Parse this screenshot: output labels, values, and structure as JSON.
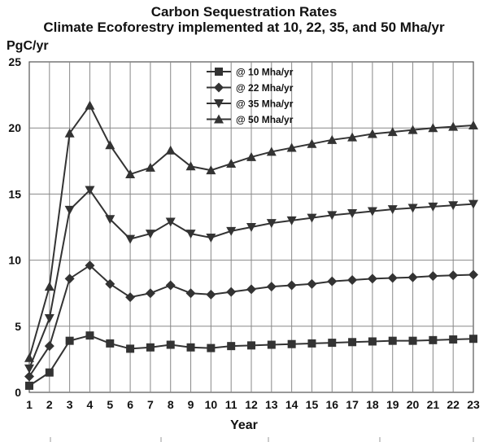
{
  "chart_data": {
    "type": "line",
    "title": "Carbon Sequestration Rates",
    "subtitle": "Climate Ecoforestry implemented at 10, 22, 35, and 50 Mha/yr",
    "ylabel": "PgC/yr",
    "xlabel": "Year",
    "x": [
      1,
      2,
      3,
      4,
      5,
      6,
      7,
      8,
      9,
      10,
      11,
      12,
      13,
      14,
      15,
      16,
      17,
      18,
      19,
      20,
      21,
      22,
      23
    ],
    "xlim": [
      1,
      23
    ],
    "ylim": [
      0,
      25
    ],
    "yticks": [
      0,
      5,
      10,
      15,
      20,
      25
    ],
    "grid": true,
    "legend_position": "top-center",
    "series": [
      {
        "name": "@ 10 Mha/yr",
        "marker": "square",
        "values": [
          0.5,
          1.5,
          3.9,
          4.3,
          3.7,
          3.3,
          3.4,
          3.6,
          3.4,
          3.35,
          3.5,
          3.55,
          3.6,
          3.65,
          3.7,
          3.75,
          3.8,
          3.85,
          3.9,
          3.9,
          3.95,
          4.0,
          4.05
        ]
      },
      {
        "name": "@ 22 Mha/yr",
        "marker": "diamond",
        "values": [
          1.2,
          3.5,
          8.6,
          9.6,
          8.2,
          7.2,
          7.5,
          8.1,
          7.5,
          7.4,
          7.6,
          7.8,
          8.0,
          8.1,
          8.2,
          8.4,
          8.5,
          8.6,
          8.65,
          8.7,
          8.8,
          8.85,
          8.9
        ]
      },
      {
        "name": "@ 35 Mha/yr",
        "marker": "triangle-down",
        "values": [
          1.8,
          5.6,
          13.8,
          15.3,
          13.1,
          11.6,
          12.0,
          12.9,
          12.0,
          11.7,
          12.2,
          12.5,
          12.8,
          13.0,
          13.2,
          13.4,
          13.55,
          13.7,
          13.85,
          13.95,
          14.05,
          14.15,
          14.25
        ]
      },
      {
        "name": "@ 50 Mha/yr",
        "marker": "triangle-up",
        "values": [
          2.6,
          8.0,
          19.6,
          21.7,
          18.7,
          16.5,
          17.0,
          18.3,
          17.1,
          16.8,
          17.3,
          17.8,
          18.2,
          18.5,
          18.8,
          19.1,
          19.3,
          19.55,
          19.7,
          19.85,
          20.0,
          20.1,
          20.2
        ]
      }
    ]
  }
}
